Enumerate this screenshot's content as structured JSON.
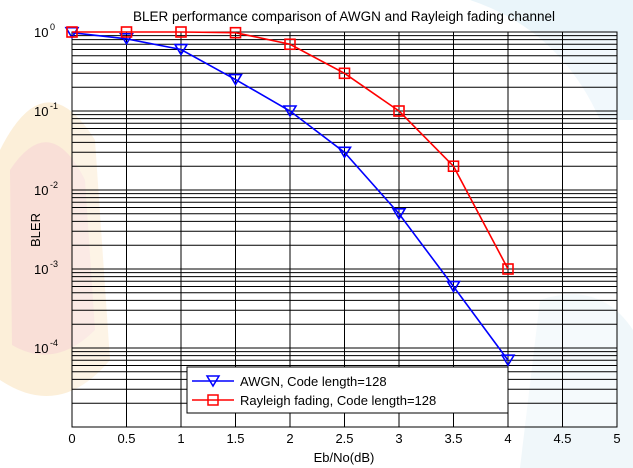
{
  "chart_data": {
    "type": "line",
    "title": "BLER performance comparison of AWGN and Rayleigh fading channel",
    "xlabel": "Eb/No(dB)",
    "ylabel": "BLER",
    "xlim": [
      0,
      5
    ],
    "ylim": [
      1e-05,
      1
    ],
    "yscale": "log",
    "grid": true,
    "legend_position": "bottom-center",
    "x_ticks": [
      "0",
      "0.5",
      "1",
      "1.5",
      "2",
      "2.5",
      "3",
      "3.5",
      "4",
      "4.5",
      "5"
    ],
    "y_ticks": [
      {
        "base": "10",
        "exp": "0"
      },
      {
        "base": "10",
        "exp": "-1"
      },
      {
        "base": "10",
        "exp": "-2"
      },
      {
        "base": "10",
        "exp": "-3"
      },
      {
        "base": "10",
        "exp": "-4"
      }
    ],
    "series": [
      {
        "name": "AWGN, Code length=128",
        "color": "#0000ff",
        "marker": "triangle-down",
        "x": [
          0,
          0.5,
          1,
          1.5,
          2,
          2.5,
          3,
          3.5,
          4
        ],
        "y": [
          0.98,
          0.82,
          0.6,
          0.25,
          0.1,
          0.03,
          0.005,
          0.0006,
          7e-05
        ]
      },
      {
        "name": "Rayleigh fading, Code length=128",
        "color": "#ff0000",
        "marker": "square",
        "x": [
          0,
          0.5,
          1,
          1.5,
          2,
          2.5,
          3,
          3.5,
          4
        ],
        "y": [
          1,
          1,
          1,
          0.98,
          0.7,
          0.3,
          0.1,
          0.02,
          0.001
        ]
      }
    ]
  }
}
